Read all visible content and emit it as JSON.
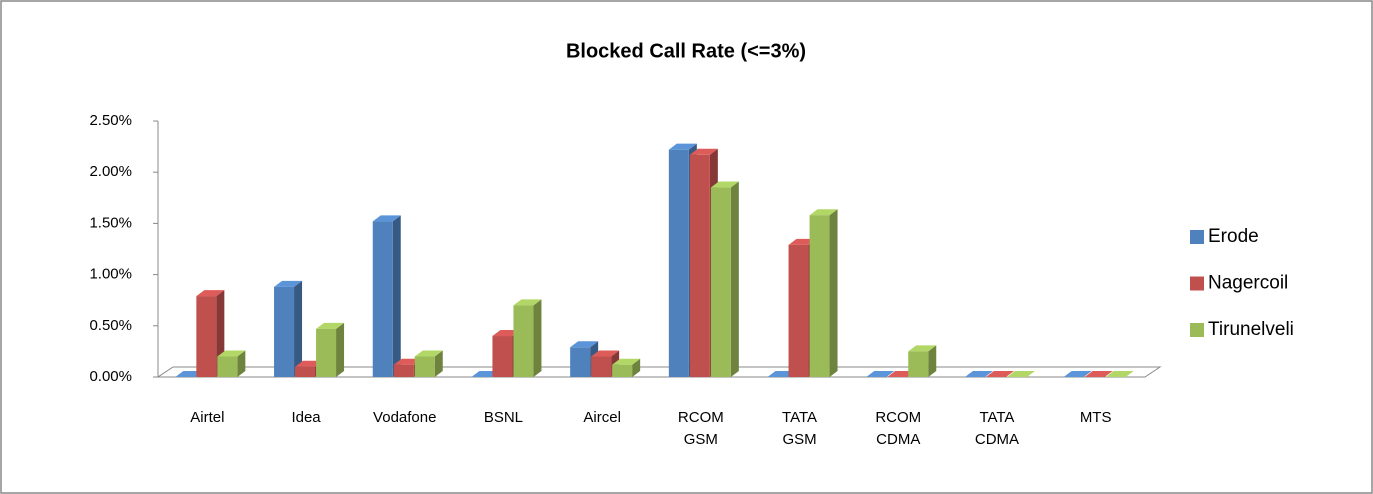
{
  "chart_data": {
    "type": "bar3d",
    "title": "Blocked Call Rate (<=3%)",
    "categories": [
      "Airtel",
      "Idea",
      "Vodafone",
      "BSNL",
      "Aircel",
      "RCOM GSM",
      "TATA GSM",
      "RCOM CDMA",
      "TATA CDMA",
      "MTS"
    ],
    "series": [
      {
        "name": "Erode",
        "color": "#4f81bd",
        "values": [
          0,
          0.88,
          1.52,
          0,
          0.29,
          2.22,
          0,
          0,
          0,
          0
        ]
      },
      {
        "name": "Nagercoil",
        "color": "#c0504d",
        "values": [
          0.79,
          0.1,
          0.12,
          0.4,
          0.2,
          2.17,
          1.29,
          0,
          0,
          0
        ]
      },
      {
        "name": "Tirunelveli",
        "color": "#9bbb59",
        "values": [
          0.2,
          0.47,
          0.2,
          0.7,
          0.12,
          1.85,
          1.58,
          0.25,
          0,
          0
        ]
      }
    ],
    "ylim": [
      0,
      2.5
    ],
    "yticks": [
      {
        "value": 0,
        "label": "0.00%"
      },
      {
        "value": 0.5,
        "label": "0.50%"
      },
      {
        "value": 1,
        "label": "1.00%"
      },
      {
        "value": 1.5,
        "label": "1.50%"
      },
      {
        "value": 2,
        "label": "2.00%"
      },
      {
        "value": 2.5,
        "label": "2.50%"
      }
    ],
    "legend": "right"
  }
}
